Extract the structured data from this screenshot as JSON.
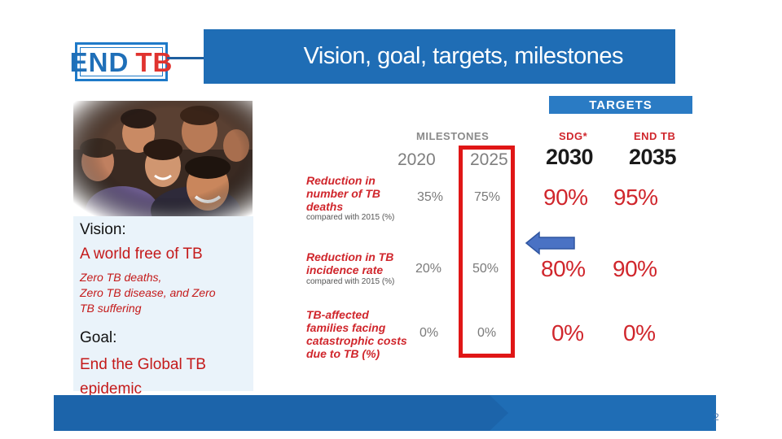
{
  "logo": {
    "part1": "END",
    "part2": "TB"
  },
  "title": "Vision, goal, targets, milestones",
  "vision": {
    "heading": "Vision:",
    "statement": "A world free of TB",
    "detail": [
      "Zero TB deaths,",
      "Zero TB disease, and Zero",
      "TB suffering"
    ]
  },
  "goal": {
    "heading": "Goal:",
    "statement": [
      "End the Global TB",
      "epidemic"
    ]
  },
  "table": {
    "targets_label": "TARGETS",
    "milestones_label": "MILESTONES",
    "sdg_label": "SDG*",
    "endtb_label": "END TB",
    "years": [
      "2020",
      "2025",
      "2030",
      "2035"
    ],
    "rows": [
      {
        "label": [
          "Reduction in",
          "number of TB",
          "deaths"
        ],
        "sub": "compared with 2015 (%)",
        "values": [
          "35%",
          "75%",
          "90%",
          "95%"
        ]
      },
      {
        "label": [
          "Reduction in TB",
          "incidence rate"
        ],
        "sub": "compared with 2015 (%)",
        "values": [
          "20%",
          "50%",
          "80%",
          "90%"
        ]
      },
      {
        "label": [
          "TB-affected",
          "families facing",
          "catastrophic costs",
          "due to TB (%)"
        ],
        "sub": "",
        "values": [
          "0%",
          "0%",
          "0%",
          "0%"
        ]
      }
    ]
  },
  "page_number": "2",
  "colors": {
    "brand_blue": "#1f6db5",
    "accent_red": "#d0262c",
    "highlight_red": "#e01616"
  }
}
